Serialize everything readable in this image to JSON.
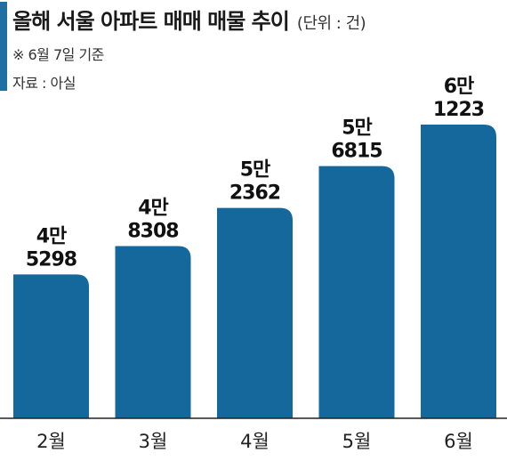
{
  "header": {
    "title": "올해 서울 아파트 매매 매물 추이",
    "unit": "(단위 : 건)",
    "note": "※ 6월 7일 기준",
    "source": "자료 : 아실"
  },
  "colors": {
    "bar": "#15689c",
    "accent": "#1f6fa3"
  },
  "chart_data": {
    "type": "bar",
    "title": "올해 서울 아파트 매매 매물 추이",
    "unit": "건",
    "categories": [
      "2월",
      "3월",
      "4월",
      "5월",
      "6월"
    ],
    "values": [
      45298,
      48308,
      52362,
      56815,
      61223
    ],
    "value_labels": [
      [
        "4만",
        "5298"
      ],
      [
        "4만",
        "8308"
      ],
      [
        "5만",
        "2362"
      ],
      [
        "5만",
        "6815"
      ],
      [
        "6만",
        "1223"
      ]
    ],
    "ylim": [
      30000,
      61223
    ],
    "grid": false,
    "legend": "none"
  }
}
